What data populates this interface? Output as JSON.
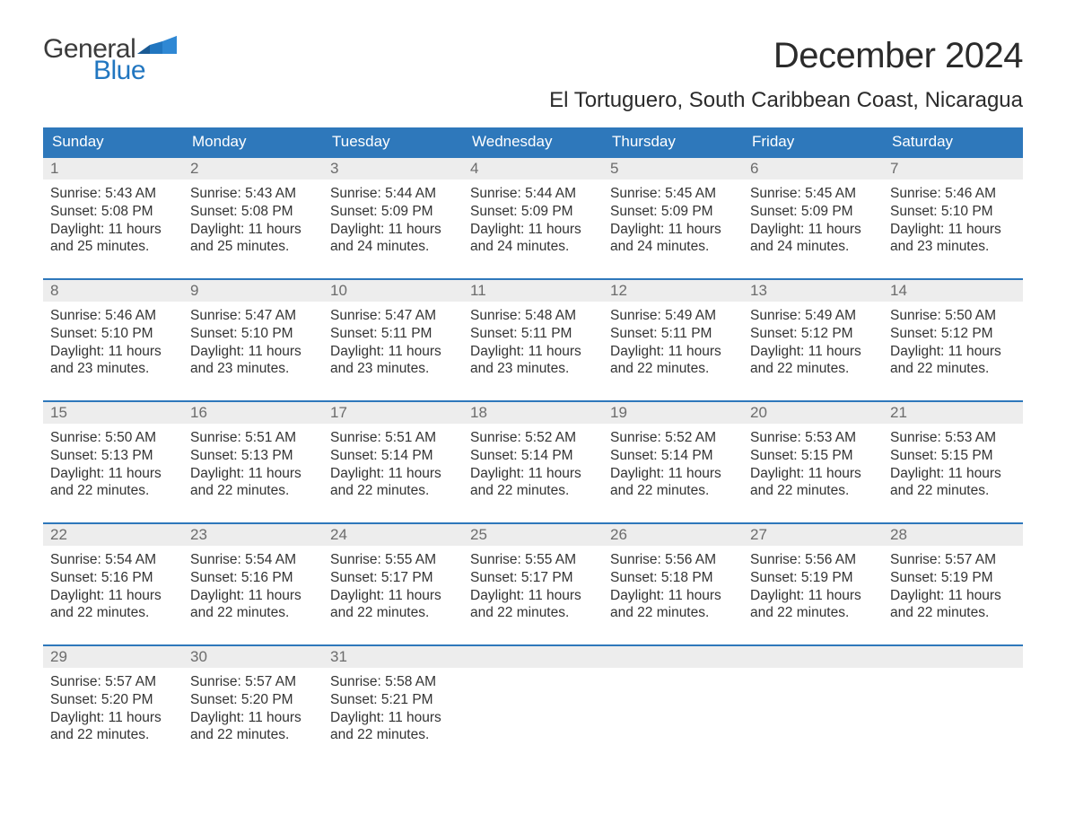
{
  "brand": {
    "general": "General",
    "blue": "Blue"
  },
  "title": "December 2024",
  "location": "El Tortuguero, South Caribbean Coast, Nicaragua",
  "colors": {
    "header_bg": "#2e78bb",
    "header_text": "#ffffff",
    "daynum_bg": "#ededed",
    "daynum_text": "#6c6c6c",
    "daynum_border": "#2e78bb",
    "body_text": "#333333",
    "title_text": "#2b2b2b",
    "logo_blue": "#2176c0",
    "logo_dark": "#3b3b3b",
    "page_bg": "#ffffff"
  },
  "fonts": {
    "title_size_pt": 30,
    "location_size_pt": 18,
    "header_size_pt": 13,
    "daynum_size_pt": 13,
    "body_size_pt": 12
  },
  "calendar": {
    "type": "calendar-table",
    "columns": [
      "Sunday",
      "Monday",
      "Tuesday",
      "Wednesday",
      "Thursday",
      "Friday",
      "Saturday"
    ],
    "weeks": [
      [
        {
          "day": "1",
          "sunrise": "Sunrise: 5:43 AM",
          "sunset": "Sunset: 5:08 PM",
          "daylight1": "Daylight: 11 hours",
          "daylight2": "and 25 minutes."
        },
        {
          "day": "2",
          "sunrise": "Sunrise: 5:43 AM",
          "sunset": "Sunset: 5:08 PM",
          "daylight1": "Daylight: 11 hours",
          "daylight2": "and 25 minutes."
        },
        {
          "day": "3",
          "sunrise": "Sunrise: 5:44 AM",
          "sunset": "Sunset: 5:09 PM",
          "daylight1": "Daylight: 11 hours",
          "daylight2": "and 24 minutes."
        },
        {
          "day": "4",
          "sunrise": "Sunrise: 5:44 AM",
          "sunset": "Sunset: 5:09 PM",
          "daylight1": "Daylight: 11 hours",
          "daylight2": "and 24 minutes."
        },
        {
          "day": "5",
          "sunrise": "Sunrise: 5:45 AM",
          "sunset": "Sunset: 5:09 PM",
          "daylight1": "Daylight: 11 hours",
          "daylight2": "and 24 minutes."
        },
        {
          "day": "6",
          "sunrise": "Sunrise: 5:45 AM",
          "sunset": "Sunset: 5:09 PM",
          "daylight1": "Daylight: 11 hours",
          "daylight2": "and 24 minutes."
        },
        {
          "day": "7",
          "sunrise": "Sunrise: 5:46 AM",
          "sunset": "Sunset: 5:10 PM",
          "daylight1": "Daylight: 11 hours",
          "daylight2": "and 23 minutes."
        }
      ],
      [
        {
          "day": "8",
          "sunrise": "Sunrise: 5:46 AM",
          "sunset": "Sunset: 5:10 PM",
          "daylight1": "Daylight: 11 hours",
          "daylight2": "and 23 minutes."
        },
        {
          "day": "9",
          "sunrise": "Sunrise: 5:47 AM",
          "sunset": "Sunset: 5:10 PM",
          "daylight1": "Daylight: 11 hours",
          "daylight2": "and 23 minutes."
        },
        {
          "day": "10",
          "sunrise": "Sunrise: 5:47 AM",
          "sunset": "Sunset: 5:11 PM",
          "daylight1": "Daylight: 11 hours",
          "daylight2": "and 23 minutes."
        },
        {
          "day": "11",
          "sunrise": "Sunrise: 5:48 AM",
          "sunset": "Sunset: 5:11 PM",
          "daylight1": "Daylight: 11 hours",
          "daylight2": "and 23 minutes."
        },
        {
          "day": "12",
          "sunrise": "Sunrise: 5:49 AM",
          "sunset": "Sunset: 5:11 PM",
          "daylight1": "Daylight: 11 hours",
          "daylight2": "and 22 minutes."
        },
        {
          "day": "13",
          "sunrise": "Sunrise: 5:49 AM",
          "sunset": "Sunset: 5:12 PM",
          "daylight1": "Daylight: 11 hours",
          "daylight2": "and 22 minutes."
        },
        {
          "day": "14",
          "sunrise": "Sunrise: 5:50 AM",
          "sunset": "Sunset: 5:12 PM",
          "daylight1": "Daylight: 11 hours",
          "daylight2": "and 22 minutes."
        }
      ],
      [
        {
          "day": "15",
          "sunrise": "Sunrise: 5:50 AM",
          "sunset": "Sunset: 5:13 PM",
          "daylight1": "Daylight: 11 hours",
          "daylight2": "and 22 minutes."
        },
        {
          "day": "16",
          "sunrise": "Sunrise: 5:51 AM",
          "sunset": "Sunset: 5:13 PM",
          "daylight1": "Daylight: 11 hours",
          "daylight2": "and 22 minutes."
        },
        {
          "day": "17",
          "sunrise": "Sunrise: 5:51 AM",
          "sunset": "Sunset: 5:14 PM",
          "daylight1": "Daylight: 11 hours",
          "daylight2": "and 22 minutes."
        },
        {
          "day": "18",
          "sunrise": "Sunrise: 5:52 AM",
          "sunset": "Sunset: 5:14 PM",
          "daylight1": "Daylight: 11 hours",
          "daylight2": "and 22 minutes."
        },
        {
          "day": "19",
          "sunrise": "Sunrise: 5:52 AM",
          "sunset": "Sunset: 5:14 PM",
          "daylight1": "Daylight: 11 hours",
          "daylight2": "and 22 minutes."
        },
        {
          "day": "20",
          "sunrise": "Sunrise: 5:53 AM",
          "sunset": "Sunset: 5:15 PM",
          "daylight1": "Daylight: 11 hours",
          "daylight2": "and 22 minutes."
        },
        {
          "day": "21",
          "sunrise": "Sunrise: 5:53 AM",
          "sunset": "Sunset: 5:15 PM",
          "daylight1": "Daylight: 11 hours",
          "daylight2": "and 22 minutes."
        }
      ],
      [
        {
          "day": "22",
          "sunrise": "Sunrise: 5:54 AM",
          "sunset": "Sunset: 5:16 PM",
          "daylight1": "Daylight: 11 hours",
          "daylight2": "and 22 minutes."
        },
        {
          "day": "23",
          "sunrise": "Sunrise: 5:54 AM",
          "sunset": "Sunset: 5:16 PM",
          "daylight1": "Daylight: 11 hours",
          "daylight2": "and 22 minutes."
        },
        {
          "day": "24",
          "sunrise": "Sunrise: 5:55 AM",
          "sunset": "Sunset: 5:17 PM",
          "daylight1": "Daylight: 11 hours",
          "daylight2": "and 22 minutes."
        },
        {
          "day": "25",
          "sunrise": "Sunrise: 5:55 AM",
          "sunset": "Sunset: 5:17 PM",
          "daylight1": "Daylight: 11 hours",
          "daylight2": "and 22 minutes."
        },
        {
          "day": "26",
          "sunrise": "Sunrise: 5:56 AM",
          "sunset": "Sunset: 5:18 PM",
          "daylight1": "Daylight: 11 hours",
          "daylight2": "and 22 minutes."
        },
        {
          "day": "27",
          "sunrise": "Sunrise: 5:56 AM",
          "sunset": "Sunset: 5:19 PM",
          "daylight1": "Daylight: 11 hours",
          "daylight2": "and 22 minutes."
        },
        {
          "day": "28",
          "sunrise": "Sunrise: 5:57 AM",
          "sunset": "Sunset: 5:19 PM",
          "daylight1": "Daylight: 11 hours",
          "daylight2": "and 22 minutes."
        }
      ],
      [
        {
          "day": "29",
          "sunrise": "Sunrise: 5:57 AM",
          "sunset": "Sunset: 5:20 PM",
          "daylight1": "Daylight: 11 hours",
          "daylight2": "and 22 minutes."
        },
        {
          "day": "30",
          "sunrise": "Sunrise: 5:57 AM",
          "sunset": "Sunset: 5:20 PM",
          "daylight1": "Daylight: 11 hours",
          "daylight2": "and 22 minutes."
        },
        {
          "day": "31",
          "sunrise": "Sunrise: 5:58 AM",
          "sunset": "Sunset: 5:21 PM",
          "daylight1": "Daylight: 11 hours",
          "daylight2": "and 22 minutes."
        },
        null,
        null,
        null,
        null
      ]
    ]
  }
}
